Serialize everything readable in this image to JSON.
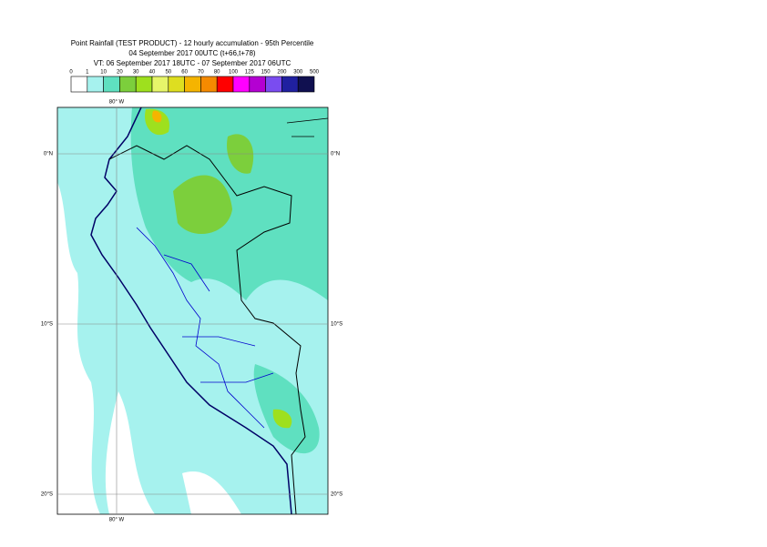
{
  "title_lines": [
    "Point Rainfall (TEST PRODUCT) - 12 hourly accumulation - 95th Percentile",
    "04 September 2017 00UTC (t+66,t+78)",
    "VT: 06 September 2017 18UTC - 07 September 2017 06UTC"
  ],
  "legend": {
    "thresholds": [
      0,
      1,
      10,
      20,
      30,
      40,
      50,
      60,
      70,
      80,
      100,
      125,
      150,
      200,
      300,
      500
    ],
    "colors": [
      "#ffffff",
      "#a6f2ee",
      "#5fe0c0",
      "#7ccf3c",
      "#9ee01e",
      "#e6f56a",
      "#dede20",
      "#f5b400",
      "#f58a00",
      "#ff0000",
      "#ff00ff",
      "#b400d2",
      "#7a4cf0",
      "#2020a0",
      "#101050"
    ]
  },
  "graticule": {
    "lon": [
      {
        "value": -80,
        "label": "80° W"
      }
    ],
    "lat": [
      {
        "value": 0,
        "label": "0°N"
      },
      {
        "value": -10,
        "label": "10°S"
      },
      {
        "value": -20,
        "label": "20°S"
      }
    ]
  }
}
